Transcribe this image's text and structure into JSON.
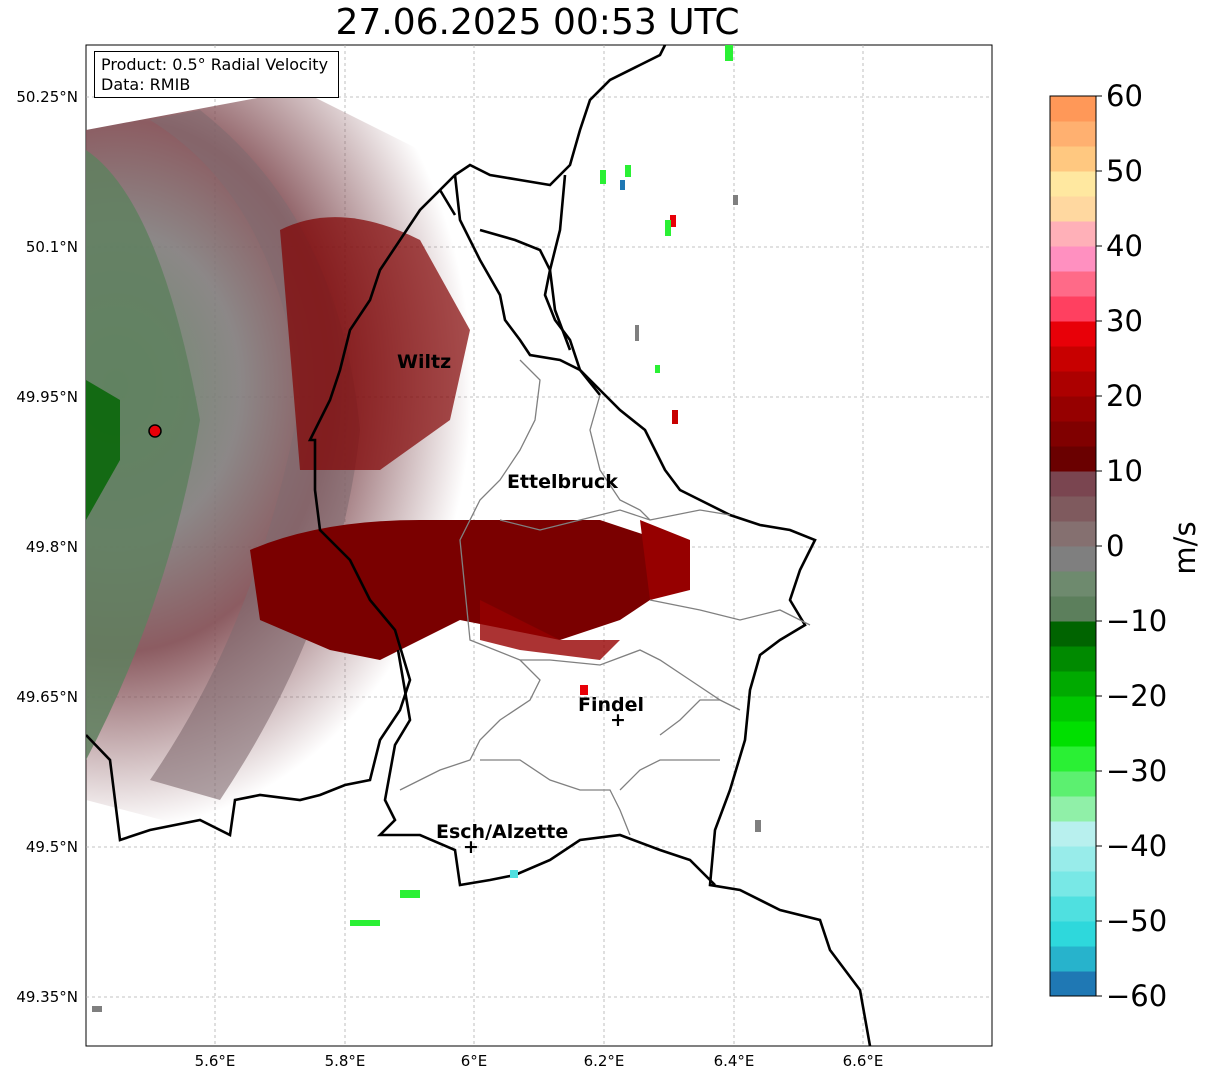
{
  "title": "27.06.2025 00:53 UTC",
  "info_box": {
    "product": "Product: 0.5° Radial Velocity",
    "data": "Data: RMIB"
  },
  "axes": {
    "lon_ticks": [
      "5.6°E",
      "5.8°E",
      "6°E",
      "6.2°E",
      "6.4°E",
      "6.6°E"
    ],
    "lat_ticks": [
      "50.25°N",
      "50.1°N",
      "49.95°N",
      "49.8°N",
      "49.65°N",
      "49.5°N",
      "49.35°N"
    ]
  },
  "colorbar": {
    "label": "m/s",
    "ticks": [
      "60",
      "50",
      "40",
      "30",
      "20",
      "10",
      "0",
      "−10",
      "−20",
      "−30",
      "−40",
      "−50",
      "−60"
    ],
    "range": [
      -60,
      60
    ],
    "colors": [
      "#1f78b4",
      "#27b3cc",
      "#2ed8dc",
      "#4fe0e0",
      "#78e8e6",
      "#98ecea",
      "#b8f0ee",
      "#90f0a8",
      "#5cf070",
      "#2af034",
      "#00e000",
      "#00c800",
      "#00aa00",
      "#008a00",
      "#006400",
      "#5c7f5c",
      "#6e8a6e",
      "#7f7f7f",
      "#857070",
      "#7f5a5e",
      "#7a4550",
      "#6a0000",
      "#800000",
      "#960000",
      "#ac0000",
      "#c80000",
      "#e80008",
      "#ff4060",
      "#ff6a88",
      "#ff90c0",
      "#ffb0b8",
      "#ffd8a0",
      "#ffe8a0",
      "#ffc880",
      "#ffb070",
      "#ff9858"
    ]
  },
  "map": {
    "radar_site": "radar-site-marker",
    "cities": [
      {
        "name": "Wiltz"
      },
      {
        "name": "Ettelbruck"
      },
      {
        "name": "Findel"
      },
      {
        "name": "Esch/Alzette"
      }
    ]
  }
}
